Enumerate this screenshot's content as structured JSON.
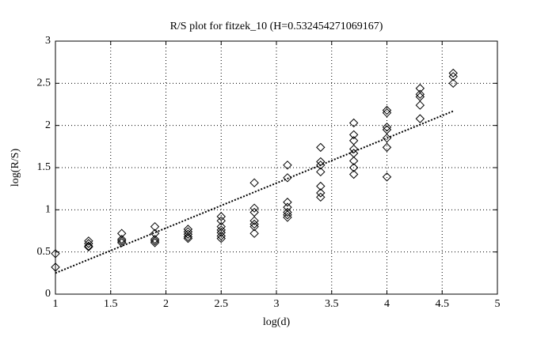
{
  "chart_data": {
    "type": "scatter",
    "title": "R/S plot for fitzek_10 (H=0.532454271069167)",
    "x_label": "log(d)",
    "y_label": "log(R/S)",
    "xlim": [
      1,
      5
    ],
    "ylim": [
      0,
      3
    ],
    "xticks": [
      1,
      1.5,
      2,
      2.5,
      3,
      3.5,
      4,
      4.5,
      5
    ],
    "yticks": [
      0,
      0.5,
      1,
      1.5,
      2,
      2.5,
      3
    ],
    "grid": true,
    "series": [
      {
        "type": "scatter",
        "color": "#000000",
        "x": [
          1,
          1,
          1.3,
          1.3,
          1.3,
          1.3,
          1.6,
          1.6,
          1.6,
          1.6,
          1.9,
          1.9,
          1.9,
          1.9,
          1.9,
          2.2,
          2.2,
          2.2,
          2.2,
          2.2,
          2.5,
          2.5,
          2.5,
          2.5,
          2.5,
          2.5,
          2.5,
          2.8,
          2.8,
          2.8,
          2.8,
          2.8,
          2.8,
          2.8,
          3.1,
          3.1,
          3.1,
          3.1,
          3.1,
          3.1,
          3.1,
          3.4,
          3.4,
          3.4,
          3.4,
          3.4,
          3.4,
          3.4,
          3.7,
          3.7,
          3.7,
          3.7,
          3.7,
          3.7,
          3.7,
          3.7,
          4.0,
          4.0,
          4.0,
          4.0,
          4.0,
          4.0,
          4.0,
          4.3,
          4.3,
          4.3,
          4.3,
          4.3,
          4.6,
          4.6,
          4.6
        ],
        "values": [
          0.48,
          0.32,
          0.63,
          0.6,
          0.57,
          0.56,
          0.72,
          0.65,
          0.63,
          0.61,
          0.8,
          0.72,
          0.65,
          0.63,
          0.61,
          0.77,
          0.74,
          0.71,
          0.68,
          0.66,
          0.92,
          0.87,
          0.8,
          0.76,
          0.73,
          0.69,
          0.66,
          1.32,
          1.02,
          0.97,
          0.87,
          0.83,
          0.8,
          0.72,
          1.53,
          1.38,
          1.09,
          1.03,
          0.97,
          0.94,
          0.91,
          1.74,
          1.57,
          1.53,
          1.45,
          1.28,
          1.2,
          1.15,
          2.03,
          1.89,
          1.82,
          1.72,
          1.67,
          1.58,
          1.5,
          1.42,
          2.18,
          2.15,
          1.98,
          1.95,
          1.85,
          1.74,
          1.39,
          2.44,
          2.37,
          2.34,
          2.24,
          2.08,
          2.62,
          2.58,
          2.5
        ]
      },
      {
        "type": "line",
        "color": "#000000",
        "dash": "dotted",
        "x": [
          1,
          4.6
        ],
        "values": [
          0.25,
          2.17
        ]
      }
    ]
  }
}
